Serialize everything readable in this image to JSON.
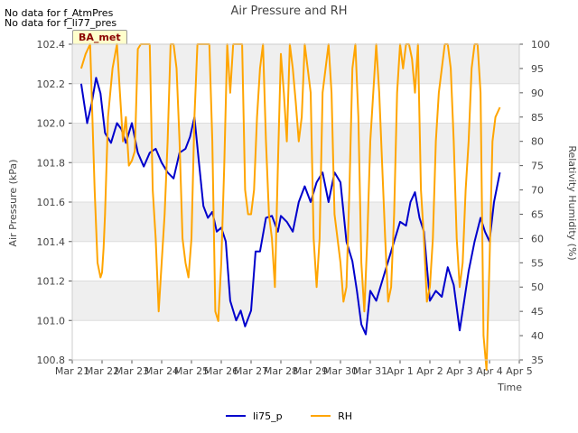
{
  "notes": [
    "No data for f_AtmPres",
    "No data for f_li77_pres"
  ],
  "badge": "BA_met",
  "chart_data": {
    "type": "line",
    "title": "Air Pressure and RH",
    "xlabel": "Time",
    "ylabel_left": "Air Pressure (kPa)",
    "ylabel_right": "Relativity Humidity (%)",
    "x_ticks": [
      "Mar 21",
      "Mar 22",
      "Mar 23",
      "Mar 24",
      "Mar 25",
      "Mar 26",
      "Mar 27",
      "Mar 28",
      "Mar 29",
      "Mar 30",
      "Mar 31",
      "Apr 1",
      "Apr 2",
      "Apr 3",
      "Apr 4",
      "Apr 5"
    ],
    "xlim": [
      0,
      15
    ],
    "ylim_left": [
      100.8,
      102.4
    ],
    "ylim_right": [
      35,
      100
    ],
    "y_ticks_left": [
      "100.8",
      "101.0",
      "101.2",
      "101.4",
      "101.6",
      "101.8",
      "102.0",
      "102.2",
      "102.4"
    ],
    "y_ticks_right": [
      "35",
      "40",
      "45",
      "50",
      "55",
      "60",
      "65",
      "70",
      "75",
      "80",
      "85",
      "90",
      "95",
      "100"
    ],
    "grid": "horizontal bands",
    "legend": "bottom-center",
    "series": [
      {
        "name": "li75_p",
        "axis": "left",
        "color": "#0000cc",
        "x": [
          0.3,
          0.5,
          0.65,
          0.8,
          0.95,
          1.1,
          1.3,
          1.5,
          1.65,
          1.8,
          2.0,
          2.2,
          2.4,
          2.6,
          2.8,
          3.0,
          3.2,
          3.4,
          3.6,
          3.8,
          3.95,
          4.1,
          4.25,
          4.4,
          4.55,
          4.7,
          4.85,
          5.0,
          5.15,
          5.3,
          5.5,
          5.65,
          5.8,
          6.0,
          6.15,
          6.3,
          6.5,
          6.7,
          6.9,
          7.0,
          7.2,
          7.4,
          7.6,
          7.8,
          8.0,
          8.2,
          8.4,
          8.6,
          8.8,
          9.0,
          9.2,
          9.4,
          9.55,
          9.7,
          9.85,
          10.0,
          10.2,
          10.4,
          10.6,
          10.8,
          11.0,
          11.2,
          11.35,
          11.5,
          11.65,
          11.8,
          12.0,
          12.2,
          12.4,
          12.6,
          12.8,
          13.0,
          13.15,
          13.3,
          13.5,
          13.7,
          13.85,
          14.0,
          14.15,
          14.35
        ],
        "values": [
          102.2,
          102.0,
          102.1,
          102.23,
          102.15,
          101.95,
          101.9,
          102.0,
          101.97,
          101.9,
          102.0,
          101.85,
          101.78,
          101.85,
          101.87,
          101.8,
          101.75,
          101.72,
          101.85,
          101.87,
          101.93,
          102.03,
          101.8,
          101.58,
          101.52,
          101.55,
          101.45,
          101.47,
          101.4,
          101.1,
          101.0,
          101.05,
          100.97,
          101.05,
          101.35,
          101.35,
          101.52,
          101.53,
          101.45,
          101.53,
          101.5,
          101.45,
          101.6,
          101.68,
          101.6,
          101.7,
          101.75,
          101.6,
          101.75,
          101.7,
          101.4,
          101.3,
          101.15,
          100.98,
          100.93,
          101.15,
          101.1,
          101.2,
          101.3,
          101.4,
          101.5,
          101.48,
          101.6,
          101.65,
          101.52,
          101.45,
          101.1,
          101.15,
          101.12,
          101.27,
          101.18,
          100.95,
          101.1,
          101.25,
          101.4,
          101.52,
          101.45,
          101.4,
          101.6,
          101.75
        ]
      },
      {
        "name": "RH",
        "axis": "right",
        "color": "#ffa500",
        "x": [
          0.3,
          0.45,
          0.6,
          0.75,
          0.85,
          0.95,
          1.0,
          1.05,
          1.1,
          1.2,
          1.35,
          1.5,
          1.6,
          1.7,
          1.8,
          1.9,
          2.0,
          2.1,
          2.2,
          2.3,
          2.4,
          2.5,
          2.6,
          2.7,
          2.8,
          2.9,
          3.0,
          3.1,
          3.2,
          3.3,
          3.4,
          3.5,
          3.6,
          3.7,
          3.8,
          3.9,
          4.0,
          4.1,
          4.2,
          4.3,
          4.4,
          4.5,
          4.6,
          4.7,
          4.8,
          4.9,
          5.0,
          5.1,
          5.2,
          5.3,
          5.4,
          5.5,
          5.6,
          5.7,
          5.8,
          5.9,
          6.0,
          6.1,
          6.2,
          6.3,
          6.4,
          6.5,
          6.6,
          6.7,
          6.8,
          6.9,
          7.0,
          7.1,
          7.2,
          7.3,
          7.4,
          7.5,
          7.6,
          7.7,
          7.8,
          7.9,
          8.0,
          8.1,
          8.2,
          8.3,
          8.4,
          8.5,
          8.6,
          8.7,
          8.8,
          8.9,
          9.0,
          9.1,
          9.2,
          9.3,
          9.4,
          9.5,
          9.6,
          9.7,
          9.8,
          9.9,
          10.0,
          10.1,
          10.2,
          10.3,
          10.4,
          10.5,
          10.6,
          10.7,
          10.8,
          10.9,
          11.0,
          11.1,
          11.2,
          11.3,
          11.4,
          11.5,
          11.6,
          11.7,
          11.8,
          11.9,
          12.0,
          12.1,
          12.2,
          12.3,
          12.4,
          12.5,
          12.6,
          12.7,
          12.8,
          12.9,
          13.0,
          13.1,
          13.2,
          13.3,
          13.4,
          13.5,
          13.6,
          13.7,
          13.8,
          13.9,
          14.0,
          14.1,
          14.2,
          14.35
        ],
        "values": [
          95,
          98,
          100,
          70,
          55,
          52,
          53,
          58,
          65,
          85,
          95,
          100,
          90,
          80,
          85,
          75,
          76,
          78,
          99,
          100,
          100,
          100,
          100,
          70,
          60,
          45,
          55,
          65,
          80,
          100,
          100,
          95,
          80,
          60,
          55,
          52,
          60,
          85,
          100,
          100,
          100,
          100,
          100,
          80,
          45,
          43,
          55,
          75,
          100,
          90,
          100,
          100,
          100,
          100,
          70,
          65,
          65,
          70,
          85,
          95,
          100,
          80,
          65,
          60,
          50,
          75,
          98,
          90,
          80,
          100,
          95,
          88,
          80,
          85,
          100,
          95,
          90,
          60,
          50,
          60,
          90,
          95,
          100,
          90,
          65,
          60,
          55,
          47,
          50,
          70,
          95,
          100,
          85,
          55,
          45,
          60,
          80,
          90,
          100,
          90,
          75,
          60,
          47,
          50,
          65,
          90,
          100,
          95,
          100,
          100,
          97,
          90,
          100,
          70,
          60,
          47,
          50,
          60,
          80,
          90,
          95,
          100,
          100,
          95,
          80,
          60,
          50,
          55,
          70,
          80,
          95,
          100,
          100,
          90,
          40,
          33,
          55,
          80,
          85,
          87
        ]
      }
    ]
  }
}
